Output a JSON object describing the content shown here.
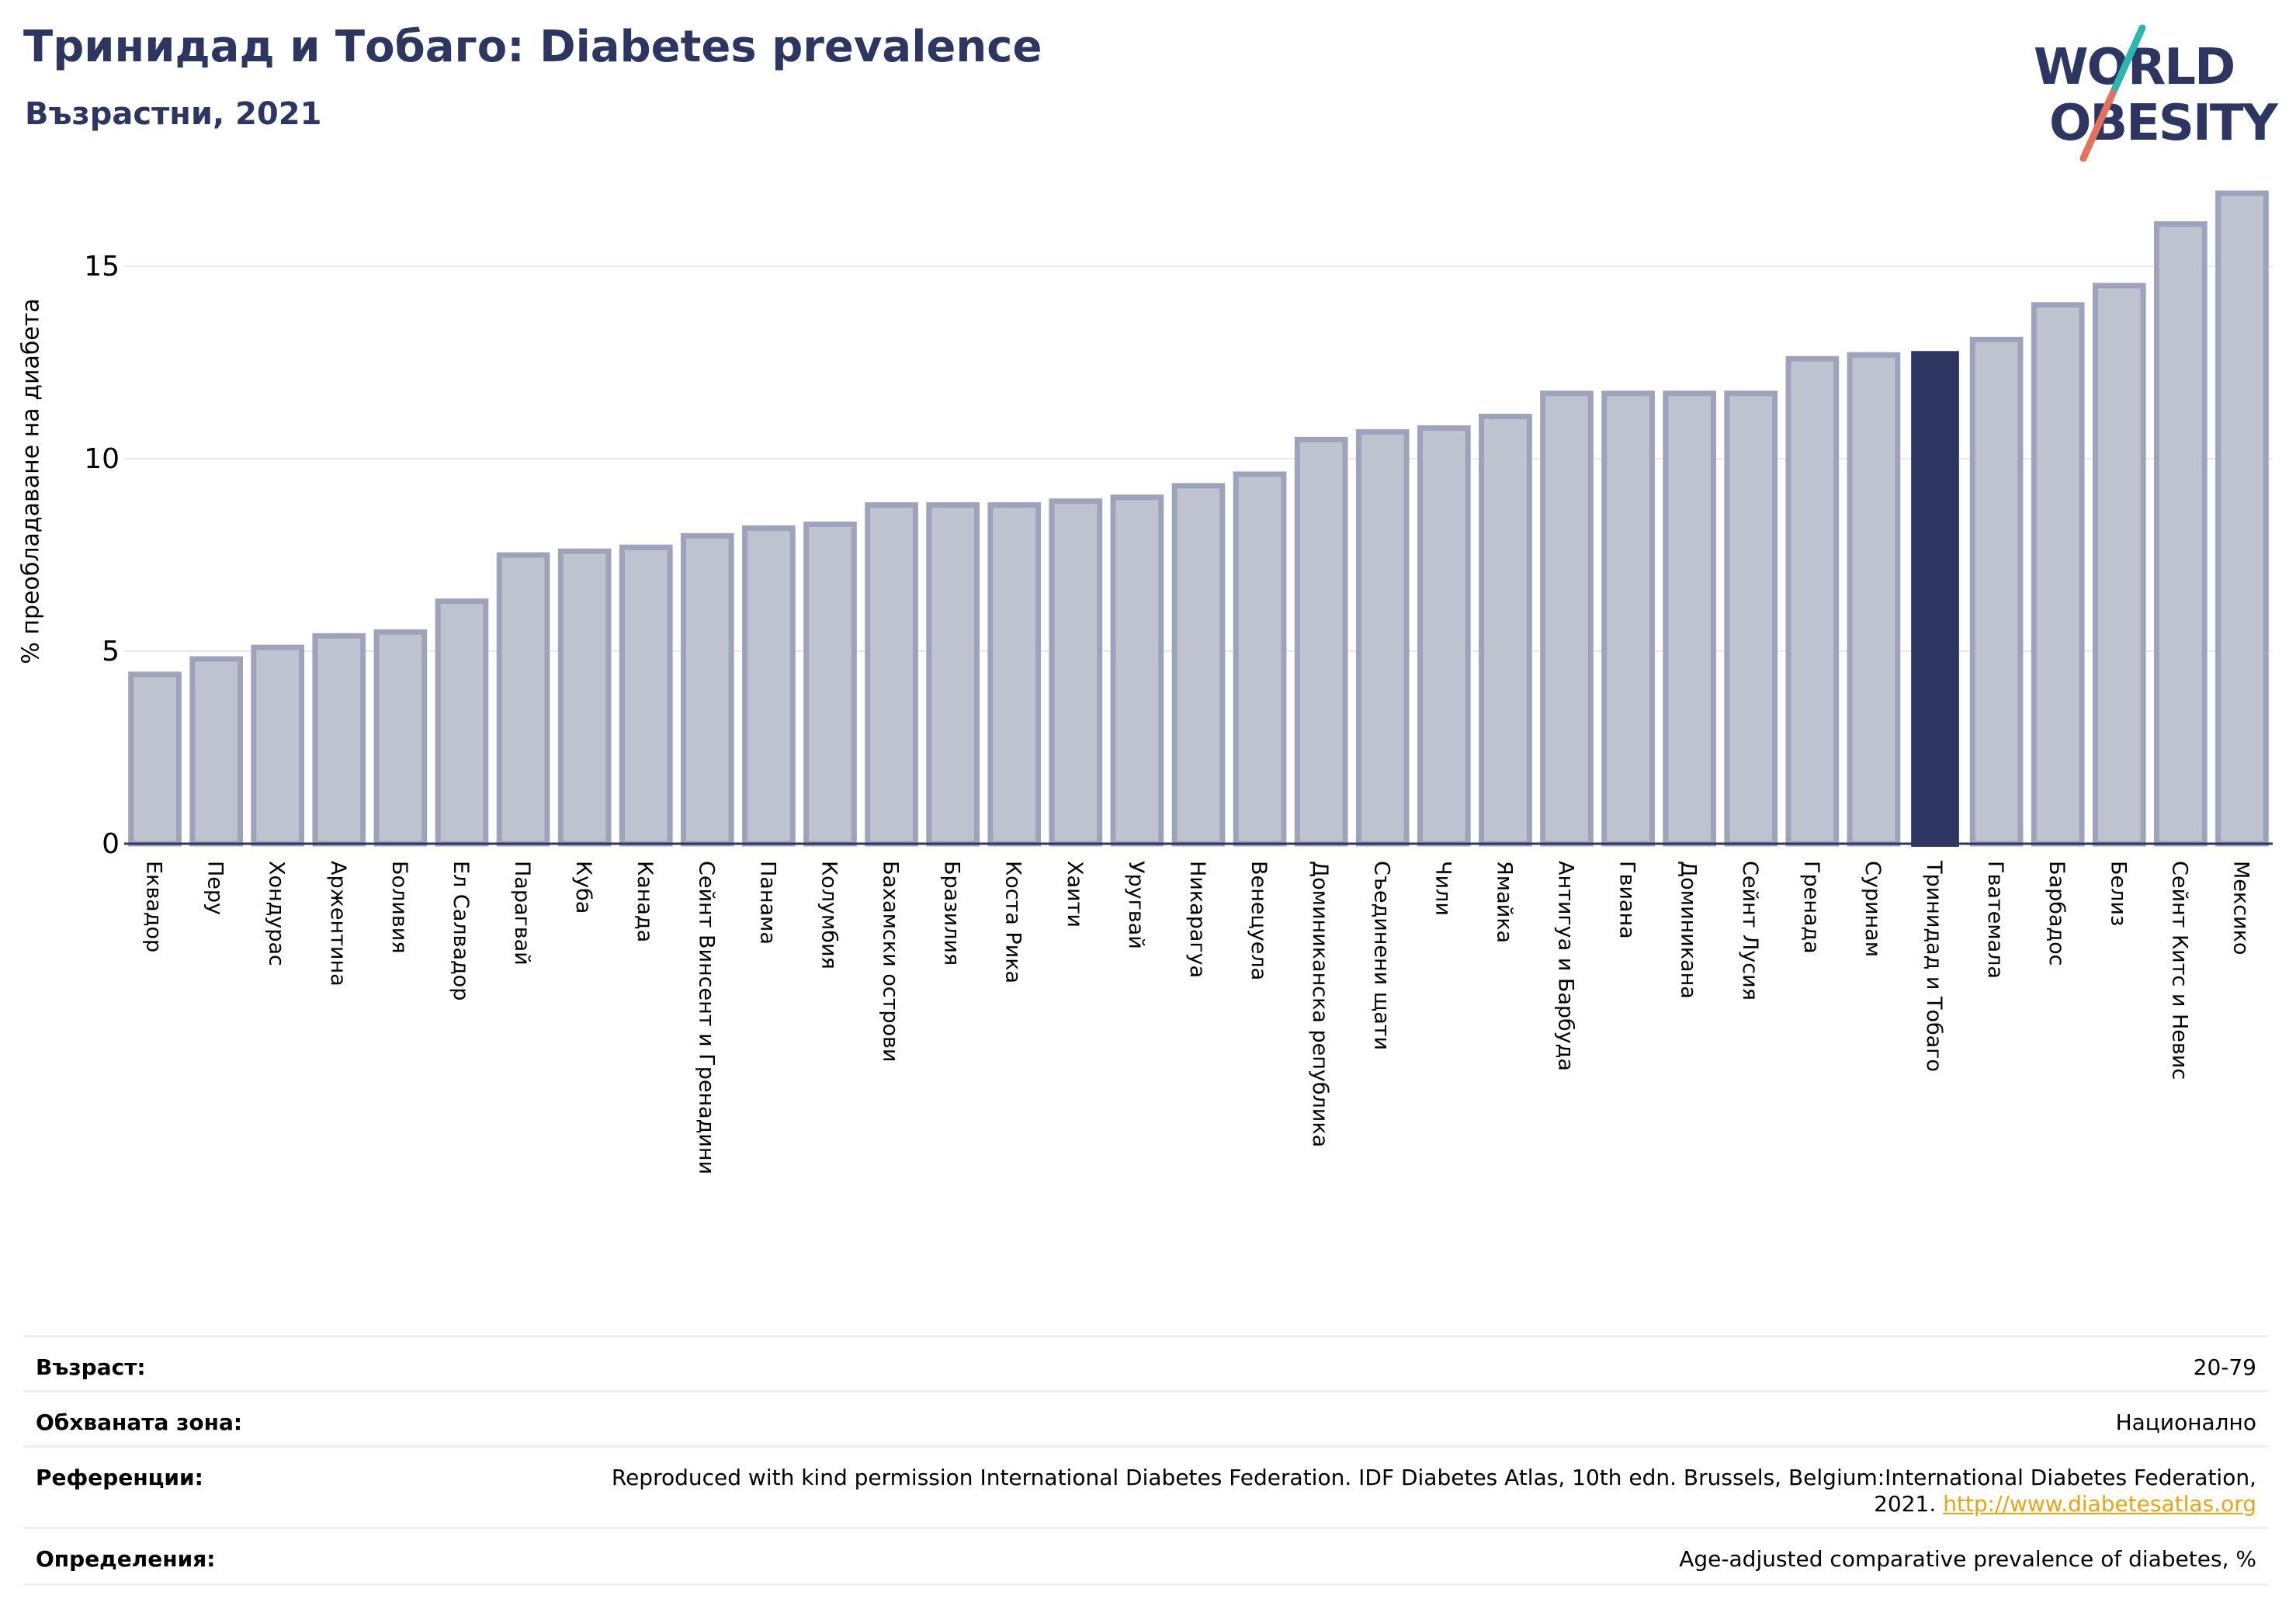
{
  "header": {
    "title": "Тринидад и Тобаго: Diabetes prevalence",
    "subtitle": "Възрастни, 2021"
  },
  "logo": {
    "line1": "WORLD",
    "line2": "OBESITY",
    "colors": {
      "navy": "#2c3660",
      "teal": "#2bb6b0",
      "coral": "#e2725b"
    }
  },
  "chart_data": {
    "type": "bar",
    "ylabel": "% преобладаване на диабета",
    "ylim": [
      0,
      17
    ],
    "yticks": [
      0,
      5,
      10,
      15
    ],
    "grid": true,
    "categories": [
      "Еквадор",
      "Перу",
      "Хондурас",
      "Аржентина",
      "Боливия",
      "Ел Салвадор",
      "Парагвай",
      "Куба",
      "Канада",
      "Сейнт Винсент и Гренадини",
      "Панама",
      "Колумбия",
      "Бахамски острови",
      "Бразилия",
      "Коста Рика",
      "Хаити",
      "Уругвай",
      "Никарагуа",
      "Венецуела",
      "Доминиканска република",
      "Съединени щати",
      "Чили",
      "Ямайка",
      "Антигуа и Барбуда",
      "Гвиана",
      "Доминикана",
      "Сейнт Лусия",
      "Гренада",
      "Суринам",
      "Тринидад и Тобаго",
      "Гватемала",
      "Барбадос",
      "Белиз",
      "Сейнт Китс и Невис",
      "Мексико"
    ],
    "values": [
      4.4,
      4.8,
      5.1,
      5.4,
      5.5,
      6.3,
      7.5,
      7.6,
      7.7,
      8.0,
      8.2,
      8.3,
      8.8,
      8.8,
      8.8,
      8.9,
      9.0,
      9.3,
      9.6,
      10.5,
      10.7,
      10.8,
      11.1,
      11.7,
      11.7,
      11.7,
      11.7,
      12.6,
      12.7,
      12.8,
      13.1,
      14.0,
      14.5,
      16.1,
      16.9
    ],
    "highlight_index": 29,
    "colors": {
      "bar": "#bfc2cf",
      "bar_edge": "#9ea3bb",
      "highlight": "#2c3660",
      "grid": "#e6e8ee",
      "axis": "#2c3660"
    }
  },
  "meta": [
    {
      "label": "Възраст:",
      "value": "20-79"
    },
    {
      "label": "Обхваната зона:",
      "value": "Национално"
    },
    {
      "label": "Референции:",
      "value": "Reproduced with kind permission International Diabetes Federation.  IDF Diabetes Atlas, 10th edn. Brussels, Belgium:International Diabetes Federation, 2021.",
      "link": "http://www.diabetesatlas.org"
    },
    {
      "label": "Определения:",
      "value": "Age-adjusted comparative prevalence of diabetes, %"
    }
  ]
}
